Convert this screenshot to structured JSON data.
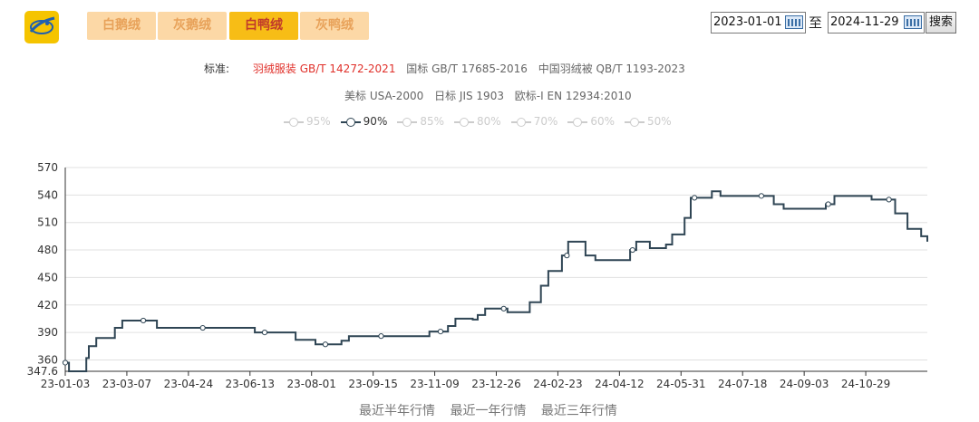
{
  "tabs": [
    {
      "label": "白鹅绒",
      "active": false
    },
    {
      "label": "灰鹅绒",
      "active": false
    },
    {
      "label": "白鸭绒",
      "active": true
    },
    {
      "label": "灰鸭绒",
      "active": false
    }
  ],
  "date_range": {
    "start": "2023-01-01",
    "separator": "至",
    "end": "2024-11-29",
    "search_label": "搜索"
  },
  "standards": {
    "label": "标准:",
    "row1": [
      "羽绒服装 GB/T 14272-2021",
      "国标 GB/T 17685-2016",
      "中国羽绒被 QB/T 1193-2023"
    ],
    "row2": [
      "美标 USA-2000",
      "日标 JIS 1903",
      "欧标-I EN 12934:2010"
    ],
    "active_color": "#e0302a"
  },
  "legend": [
    {
      "label": "95%",
      "on": false
    },
    {
      "label": "90%",
      "on": true
    },
    {
      "label": "85%",
      "on": false
    },
    {
      "label": "80%",
      "on": false
    },
    {
      "label": "70%",
      "on": false
    },
    {
      "label": "60%",
      "on": false
    },
    {
      "label": "50%",
      "on": false
    }
  ],
  "bottom_links": [
    "最近半年行情",
    "最近一年行情",
    "最近三年行情"
  ],
  "colors": {
    "line": "#2f4554",
    "tab_active_bg": "#f7bd16",
    "tab_inactive_bg": "#fcd8a6",
    "logo": "#f5c400"
  },
  "chart_data": {
    "type": "line",
    "x_start": "2023-01-03",
    "x_end": "2024-11-29",
    "xticks": [
      "23-01-03",
      "23-03-07",
      "23-04-24",
      "23-06-13",
      "23-08-01",
      "23-09-15",
      "23-11-09",
      "23-12-26",
      "24-02-23",
      "24-04-12",
      "24-05-31",
      "24-07-18",
      "24-09-03",
      "24-10-29"
    ],
    "yticks": [
      347.6,
      360,
      390,
      420,
      450,
      480,
      510,
      540,
      570
    ],
    "ylim": [
      347.6,
      570
    ],
    "grid": true,
    "step": true,
    "series": [
      {
        "legend_label": "90%",
        "points": [
          [
            "2023-01-03",
            357
          ],
          [
            "2023-01-06",
            347.6
          ],
          [
            "2023-01-20",
            362
          ],
          [
            "2023-01-22",
            375
          ],
          [
            "2023-01-28",
            384
          ],
          [
            "2023-02-12",
            395
          ],
          [
            "2023-02-18",
            403
          ],
          [
            "2023-03-18",
            395
          ],
          [
            "2023-06-05",
            390
          ],
          [
            "2023-07-08",
            382
          ],
          [
            "2023-07-24",
            377
          ],
          [
            "2023-08-14",
            381
          ],
          [
            "2023-08-20",
            386
          ],
          [
            "2023-10-24",
            391
          ],
          [
            "2023-11-08",
            397
          ],
          [
            "2023-11-14",
            405
          ],
          [
            "2023-11-28",
            404
          ],
          [
            "2023-12-02",
            409
          ],
          [
            "2023-12-08",
            416
          ],
          [
            "2023-12-26",
            412
          ],
          [
            "2024-01-13",
            423
          ],
          [
            "2024-01-22",
            441
          ],
          [
            "2024-01-28",
            457
          ],
          [
            "2024-02-08",
            474
          ],
          [
            "2024-02-13",
            489
          ],
          [
            "2024-02-27",
            474
          ],
          [
            "2024-03-06",
            469
          ],
          [
            "2024-04-03",
            480
          ],
          [
            "2024-04-08",
            489
          ],
          [
            "2024-04-19",
            482
          ],
          [
            "2024-05-02",
            486
          ],
          [
            "2024-05-07",
            497
          ],
          [
            "2024-05-17",
            515
          ],
          [
            "2024-05-22",
            537
          ],
          [
            "2024-06-08",
            544
          ],
          [
            "2024-06-15",
            539
          ],
          [
            "2024-07-28",
            530
          ],
          [
            "2024-08-05",
            525
          ],
          [
            "2024-09-08",
            530
          ],
          [
            "2024-09-15",
            539
          ],
          [
            "2024-10-15",
            535
          ],
          [
            "2024-11-03",
            520
          ],
          [
            "2024-11-13",
            503
          ],
          [
            "2024-11-24",
            495
          ],
          [
            "2024-11-29",
            489
          ]
        ],
        "markers": [
          [
            "2023-01-03",
            357
          ],
          [
            "2023-03-07",
            403
          ],
          [
            "2023-04-24",
            395
          ],
          [
            "2023-06-13",
            390
          ],
          [
            "2023-08-01",
            377
          ],
          [
            "2023-09-15",
            386
          ],
          [
            "2023-11-02",
            391
          ],
          [
            "2023-12-23",
            416
          ],
          [
            "2024-02-12",
            474
          ],
          [
            "2024-04-05",
            480
          ],
          [
            "2024-05-25",
            537
          ],
          [
            "2024-07-18",
            539
          ],
          [
            "2024-09-10",
            530
          ],
          [
            "2024-10-29",
            535
          ]
        ]
      }
    ]
  }
}
